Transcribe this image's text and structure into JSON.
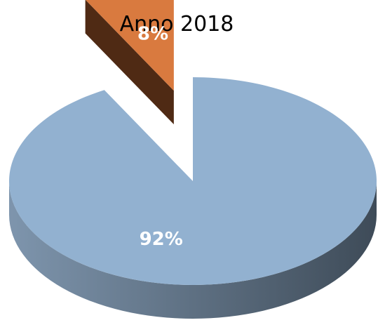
{
  "chart_data": {
    "type": "pie",
    "style": "3d-exploded",
    "title": "Anno 2018",
    "categories": [
      "",
      ""
    ],
    "values": [
      92,
      8
    ],
    "value_labels": [
      "92%",
      "8%"
    ],
    "exploded_slices": [
      1
    ],
    "colors": {
      "slices": [
        "#92b1d0",
        "#d97a3f"
      ],
      "slice_sides_dark": [
        "#3e4b58",
        "#4f2a14"
      ],
      "slice_sides_light": [
        "#7e95ad",
        "#6b3a1c"
      ],
      "label_text": "#ffffff",
      "title_text": "#000000",
      "background": "#ffffff"
    },
    "legend": "none"
  }
}
